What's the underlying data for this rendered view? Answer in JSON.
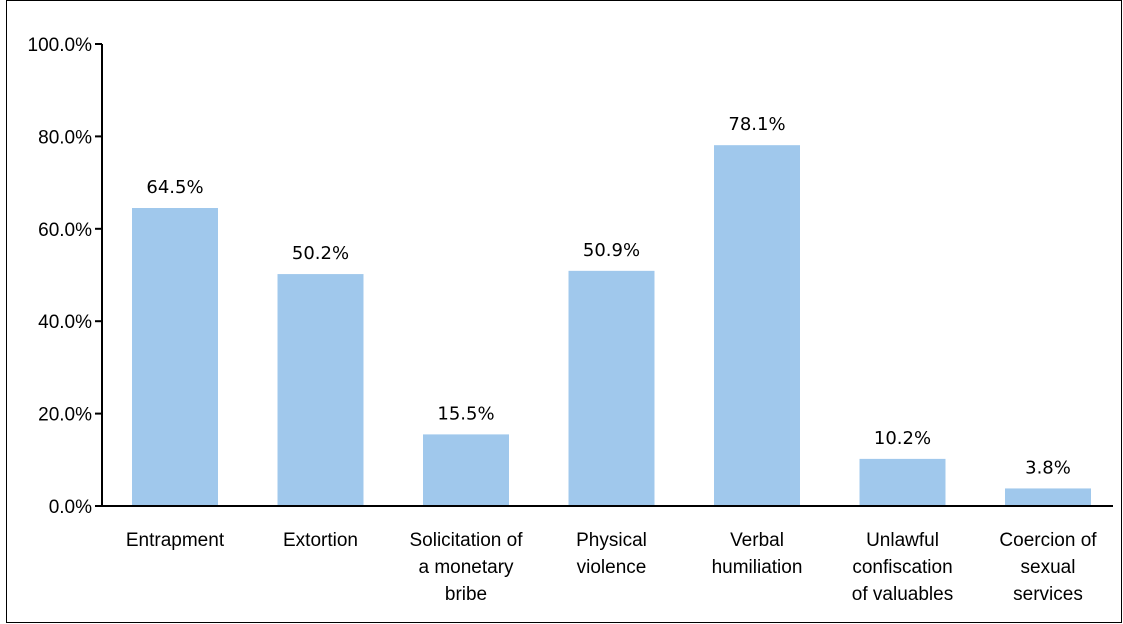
{
  "chart_data": {
    "type": "bar",
    "categories": [
      [
        "Entrapment"
      ],
      [
        "Extortion"
      ],
      [
        "Solicitation of",
        "a monetary",
        "bribe"
      ],
      [
        "Physical",
        "violence"
      ],
      [
        "Verbal",
        "humiliation"
      ],
      [
        "Unlawful",
        "confiscation",
        "of valuables"
      ],
      [
        "Coercion of",
        "sexual",
        "services"
      ]
    ],
    "values": [
      64.5,
      50.2,
      15.5,
      50.9,
      78.1,
      10.2,
      3.8
    ],
    "data_labels": [
      "64.5%",
      "50.2%",
      "15.5%",
      "50.9%",
      "78.1%",
      "10.2%",
      "3.8%"
    ],
    "yticks": [
      0,
      20,
      40,
      60,
      80,
      100
    ],
    "ytick_labels": [
      "0.0%",
      "20.0%",
      "40.0%",
      "60.0%",
      "80.0%",
      "100.0%"
    ],
    "ylim": [
      0,
      100
    ],
    "grid": false,
    "colors": {
      "bar": "#a0c8ec",
      "axis": "#000000"
    }
  }
}
